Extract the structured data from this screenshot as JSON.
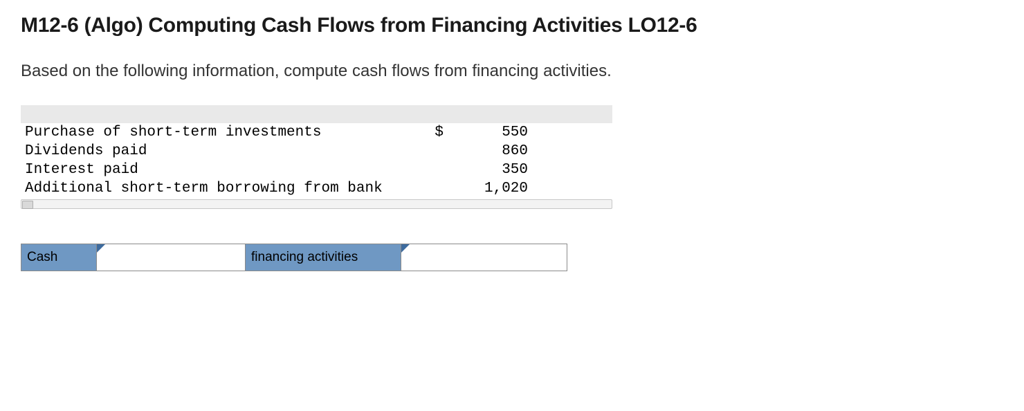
{
  "title": "M12-6 (Algo) Computing Cash Flows from Financing Activities LO12-6",
  "prompt": "Based on the following information, compute cash flows from financing activities.",
  "table": {
    "rows": [
      {
        "label": "Purchase of short-term investments",
        "currency": "$",
        "value": "550"
      },
      {
        "label": "Dividends paid",
        "currency": "",
        "value": "860"
      },
      {
        "label": "Interest paid",
        "currency": "",
        "value": "350"
      },
      {
        "label": "Additional short-term borrowing from bank",
        "currency": "",
        "value": "1,020"
      }
    ]
  },
  "answer": {
    "cash_label": "Cash",
    "dropdown_value": "",
    "fin_label": "financing activities",
    "amount_value": ""
  },
  "colors": {
    "blue_cell": "#6f98c3",
    "tab": "#3d6b9e",
    "border": "#8a8a8a",
    "header_row": "#e9e9e9"
  }
}
